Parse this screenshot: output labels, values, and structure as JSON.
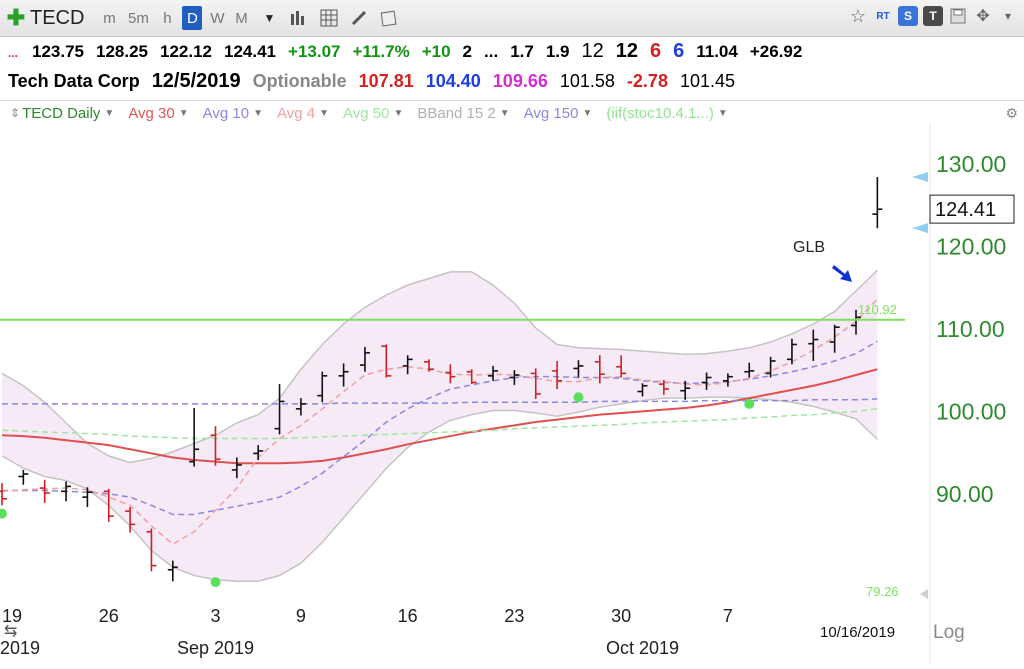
{
  "toolbar": {
    "symbol": "TECD",
    "timeframes": [
      "m",
      "5m",
      "h",
      "D",
      "W",
      "M"
    ],
    "selected_timeframe": "D",
    "icons": [
      "plus-icon",
      "bar-chart-icon",
      "grid-icon",
      "pencil-icon",
      "notes-icon"
    ],
    "right_icons": [
      "star-icon",
      "rt-flag-icon",
      "s-menu-icon",
      "t-menu-icon",
      "save-icon",
      "move-icon",
      "more-icon"
    ],
    "rt_label": "RT",
    "s_label": "S",
    "t_label": "T"
  },
  "quote_line1": {
    "dots": "...",
    "open": "123.75",
    "high": "128.25",
    "low": "122.12",
    "last": "124.41",
    "change": "+13.07",
    "change_pct": "+11.7%",
    "v1": "+10",
    "v2": "2",
    "v3": "...",
    "v4": "1.7",
    "v5": "1.9",
    "v6": "12",
    "v7": "12",
    "v8": "6",
    "v9": "6",
    "v10": "11.04",
    "v11": "+26.92"
  },
  "quote_line2": {
    "company": "Tech Data Corp",
    "date": "12/5/2019",
    "optionable": "Optionable",
    "v1": "107.81",
    "v2": "104.40",
    "v3": "109.66",
    "v4": "101.58",
    "v5": "-2.78",
    "v6": "101.45"
  },
  "studies": [
    {
      "label": "TECD Daily",
      "color": "#2a8a2a"
    },
    {
      "label": "Avg 30",
      "color": "#e05555"
    },
    {
      "label": "Avg 10",
      "color": "#8a8ae0"
    },
    {
      "label": "Avg 4",
      "color": "#f0a0a0"
    },
    {
      "label": "Avg 50",
      "color": "#9fe59f"
    },
    {
      "label": "BBand 15 2",
      "color": "#b0b0b0"
    },
    {
      "label": "Avg 150",
      "color": "#8a8ae0"
    },
    {
      "label": "(iif(stoc10.4.1...)",
      "color": "#8fe58f"
    }
  ],
  "chart_data": {
    "type": "candlestick",
    "title": "TECD Daily",
    "ylim": [
      78,
      134
    ],
    "y_ticks": [
      90,
      100,
      110,
      120,
      130
    ],
    "y_tick_labels": [
      "90.00",
      "100.00",
      "110.00",
      "120.00",
      "130.00"
    ],
    "x_tick_labels": [
      "19",
      "26",
      "3",
      "9",
      "16",
      "23",
      "30",
      "7"
    ],
    "x_tick_index": [
      0,
      5,
      10,
      14,
      19,
      24,
      29,
      34
    ],
    "month_labels": [
      {
        "label": "2019",
        "index": 0
      },
      {
        "label": "Sep 2019",
        "index": 10
      },
      {
        "label": "Oct 2019",
        "index": 30
      }
    ],
    "bottom_date": "10/16/2019",
    "log_label": "Log",
    "last_price": "124.41",
    "annotation": "GLB",
    "glb_level": 111.0,
    "glb_label": "110.92",
    "bottom_label": "79.26",
    "bars": [
      {
        "o": 90.2,
        "h": 91.2,
        "l": 88.5,
        "c": 89.3
      },
      {
        "o": 92.0,
        "h": 92.8,
        "l": 91.0,
        "c": 92.3
      },
      {
        "o": 90.6,
        "h": 91.6,
        "l": 88.8,
        "c": 90.0
      },
      {
        "o": 90.2,
        "h": 91.4,
        "l": 89.0,
        "c": 90.8
      },
      {
        "o": 89.5,
        "h": 90.7,
        "l": 88.3,
        "c": 90.1
      },
      {
        "o": 90.2,
        "h": 90.5,
        "l": 86.5,
        "c": 87.2
      },
      {
        "o": 87.8,
        "h": 88.3,
        "l": 85.2,
        "c": 86.2
      },
      {
        "o": 85.3,
        "h": 85.7,
        "l": 80.5,
        "c": 81.2
      },
      {
        "o": 80.7,
        "h": 81.8,
        "l": 79.3,
        "c": 81.0
      },
      {
        "o": 93.8,
        "h": 100.3,
        "l": 93.2,
        "c": 95.3
      },
      {
        "o": 97.0,
        "h": 98.1,
        "l": 93.3,
        "c": 94.1
      },
      {
        "o": 92.8,
        "h": 94.3,
        "l": 91.8,
        "c": 93.4
      },
      {
        "o": 94.8,
        "h": 95.8,
        "l": 94.0,
        "c": 95.1
      },
      {
        "o": 97.8,
        "h": 103.2,
        "l": 97.1,
        "c": 101.1
      },
      {
        "o": 100.2,
        "h": 101.5,
        "l": 99.4,
        "c": 100.8
      },
      {
        "o": 101.8,
        "h": 104.7,
        "l": 101.0,
        "c": 104.2
      },
      {
        "o": 104.2,
        "h": 105.7,
        "l": 102.9,
        "c": 104.7
      },
      {
        "o": 105.5,
        "h": 107.7,
        "l": 104.7,
        "c": 107.0
      },
      {
        "o": 107.8,
        "h": 108.0,
        "l": 104.0,
        "c": 104.2
      },
      {
        "o": 105.4,
        "h": 106.7,
        "l": 104.4,
        "c": 106.2
      },
      {
        "o": 105.9,
        "h": 106.2,
        "l": 104.7,
        "c": 105.0
      },
      {
        "o": 104.6,
        "h": 105.6,
        "l": 103.3,
        "c": 104.1
      },
      {
        "o": 104.7,
        "h": 105.0,
        "l": 103.2,
        "c": 103.4
      },
      {
        "o": 104.2,
        "h": 105.4,
        "l": 103.6,
        "c": 104.8
      },
      {
        "o": 104.0,
        "h": 104.9,
        "l": 103.1,
        "c": 104.3
      },
      {
        "o": 104.5,
        "h": 105.1,
        "l": 101.4,
        "c": 102.0
      },
      {
        "o": 104.8,
        "h": 106.0,
        "l": 102.6,
        "c": 103.6
      },
      {
        "o": 105.1,
        "h": 106.1,
        "l": 104.0,
        "c": 105.4
      },
      {
        "o": 105.9,
        "h": 106.7,
        "l": 103.3,
        "c": 104.4
      },
      {
        "o": 105.3,
        "h": 106.7,
        "l": 104.0,
        "c": 104.5
      },
      {
        "o": 102.3,
        "h": 103.3,
        "l": 101.7,
        "c": 103.0
      },
      {
        "o": 103.2,
        "h": 103.7,
        "l": 101.9,
        "c": 102.6
      },
      {
        "o": 102.4,
        "h": 103.6,
        "l": 101.3,
        "c": 102.7
      },
      {
        "o": 103.4,
        "h": 104.6,
        "l": 102.5,
        "c": 104.0
      },
      {
        "o": 103.6,
        "h": 104.5,
        "l": 102.9,
        "c": 104.1
      },
      {
        "o": 104.7,
        "h": 105.8,
        "l": 104.0,
        "c": 104.8
      },
      {
        "o": 104.5,
        "h": 106.5,
        "l": 104.0,
        "c": 106.0
      },
      {
        "o": 106.2,
        "h": 108.7,
        "l": 105.6,
        "c": 108.0
      },
      {
        "o": 108.1,
        "h": 109.8,
        "l": 106.0,
        "c": 108.6
      },
      {
        "o": 108.3,
        "h": 110.4,
        "l": 107.0,
        "c": 110.1
      },
      {
        "o": 110.3,
        "h": 112.2,
        "l": 109.2,
        "c": 111.3
      },
      {
        "o": 123.8,
        "h": 128.3,
        "l": 122.1,
        "c": 124.4
      }
    ],
    "series": [
      {
        "name": "Avg 30",
        "color": "#e05050",
        "values": [
          97.0,
          96.9,
          96.7,
          96.4,
          96.1,
          95.8,
          95.3,
          94.8,
          94.3,
          94.0,
          93.8,
          93.6,
          93.6,
          93.6,
          93.7,
          93.9,
          94.3,
          94.8,
          95.3,
          95.9,
          96.4,
          96.9,
          97.4,
          97.8,
          98.2,
          98.6,
          98.9,
          99.2,
          99.5,
          99.7,
          99.9,
          100.1,
          100.3,
          100.6,
          101.0,
          101.5,
          102.0,
          102.5,
          103.0,
          103.6,
          104.3,
          105.0
        ]
      },
      {
        "name": "Avg 10",
        "color": "#8888e0",
        "values": [
          90.3,
          90.3,
          90.3,
          90.2,
          90.1,
          89.9,
          89.5,
          88.5,
          87.4,
          87.4,
          87.9,
          88.4,
          88.9,
          89.5,
          90.8,
          92.4,
          94.4,
          96.4,
          98.6,
          100.2,
          101.5,
          102.6,
          103.1,
          103.6,
          104.0,
          104.1,
          104.1,
          104.0,
          104.0,
          103.9,
          103.6,
          103.4,
          103.3,
          103.3,
          103.5,
          103.8,
          104.2,
          104.7,
          105.3,
          106.0,
          106.9,
          108.4
        ]
      },
      {
        "name": "Avg 4",
        "color": "#f0a0a0",
        "values": [
          90.2,
          90.4,
          90.5,
          90.6,
          90.4,
          89.5,
          88.5,
          86.0,
          83.8,
          85.3,
          87.9,
          90.6,
          94.3,
          96.6,
          98.2,
          100.2,
          102.3,
          104.3,
          105.0,
          105.3,
          105.0,
          104.4,
          104.3,
          104.4,
          104.3,
          103.9,
          103.5,
          103.5,
          104.0,
          104.1,
          103.7,
          103.5,
          103.2,
          103.1,
          103.4,
          103.9,
          104.8,
          105.9,
          107.3,
          108.9,
          110.8,
          113.5
        ]
      },
      {
        "name": "Avg 50",
        "color": "#a0e6a0",
        "values": [
          97.6,
          97.5,
          97.4,
          97.3,
          97.2,
          97.1,
          96.9,
          96.8,
          96.7,
          96.6,
          96.6,
          96.6,
          96.6,
          96.6,
          96.7,
          96.8,
          96.9,
          97.0,
          97.1,
          97.2,
          97.3,
          97.4,
          97.5,
          97.6,
          97.8,
          97.9,
          98.0,
          98.1,
          98.2,
          98.3,
          98.5,
          98.6,
          98.7,
          98.8,
          98.9,
          99.1,
          99.2,
          99.4,
          99.5,
          99.7,
          99.9,
          100.2
        ]
      },
      {
        "name": "Avg 150",
        "color": "#8888e0",
        "values": [
          100.8,
          100.8,
          100.8,
          100.8,
          100.8,
          100.8,
          100.8,
          100.8,
          100.8,
          100.8,
          100.8,
          100.8,
          100.8,
          100.8,
          100.8,
          100.8,
          100.9,
          100.9,
          100.9,
          100.9,
          100.9,
          100.9,
          101.0,
          101.0,
          101.0,
          101.0,
          101.0,
          101.0,
          101.1,
          101.1,
          101.1,
          101.1,
          101.1,
          101.2,
          101.2,
          101.2,
          101.2,
          101.2,
          101.3,
          101.3,
          101.3,
          101.4
        ]
      }
    ],
    "bband_upper": [
      104.5,
      103.0,
      101.0,
      98.5,
      96.0,
      94.5,
      93.7,
      94.2,
      95.0,
      96.0,
      97.0,
      98.5,
      99.5,
      101.5,
      105.0,
      108.0,
      110.5,
      112.5,
      114.0,
      115.2,
      116.0,
      116.8,
      116.8,
      115.2,
      113.0,
      110.0,
      108.0,
      107.6,
      107.5,
      107.4,
      107.2,
      107.0,
      106.8,
      106.9,
      107.2,
      107.6,
      108.3,
      109.3,
      110.5,
      112.0,
      114.5,
      117.0
    ],
    "bband_lower": [
      94.5,
      93.0,
      92.0,
      91.5,
      90.5,
      88.5,
      86.0,
      83.0,
      81.0,
      80.0,
      79.5,
      79.3,
      79.3,
      80.0,
      81.5,
      84.0,
      87.0,
      90.0,
      93.0,
      95.5,
      97.4,
      98.8,
      99.5,
      100.0,
      100.0,
      99.7,
      99.3,
      99.8,
      100.4,
      100.8,
      101.2,
      101.5,
      101.5,
      101.6,
      101.6,
      101.5,
      101.3,
      101.0,
      100.5,
      99.8,
      99.0,
      96.5
    ],
    "green_dots": [
      {
        "index": 0,
        "value": 87.5
      },
      {
        "index": 10,
        "value": 79.2
      },
      {
        "index": 27,
        "value": 101.6
      },
      {
        "index": 35,
        "value": 100.8
      }
    ]
  }
}
